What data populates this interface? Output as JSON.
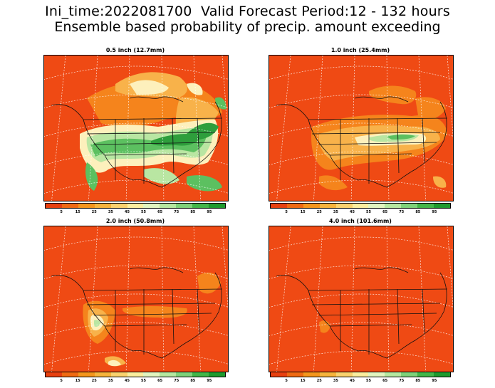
{
  "header": {
    "title_line1": "Ini_time:2022081700  Valid Forecast Period:12 - 132 hours",
    "title_line2": "Ensemble based probability of precip. amount exceeding"
  },
  "panels": [
    {
      "title": "0.5 inch (12.7mm)",
      "threshold_in": 0.5,
      "threshold_mm": 12.7
    },
    {
      "title": "1.0 inch (25.4mm)",
      "threshold_in": 1.0,
      "threshold_mm": 25.4
    },
    {
      "title": "2.0 inch (50.8mm)",
      "threshold_in": 2.0,
      "threshold_mm": 50.8
    },
    {
      "title": "4.0 inch (101.6mm)",
      "threshold_in": 4.0,
      "threshold_mm": 101.6
    }
  ],
  "colorbar": {
    "tick_labels": [
      "5",
      "15",
      "25",
      "35",
      "45",
      "55",
      "65",
      "75",
      "85",
      "95"
    ],
    "colors": [
      "#e8400f",
      "#f06a12",
      "#f5961c",
      "#f7b43c",
      "#fad26e",
      "#fbee9e",
      "#e2f5c0",
      "#b6e8a0",
      "#7fd27a",
      "#43b649",
      "#1e9a2e"
    ]
  },
  "map_colors": {
    "base": "#ef4a14",
    "orange": "#f5841c",
    "light_orange": "#f8b24a",
    "cream": "#fdf0bc",
    "light_green": "#b9e6a2",
    "green": "#5cc060",
    "dark_green": "#2e9e3c",
    "line": "#111111",
    "grid": "#ffffff"
  }
}
